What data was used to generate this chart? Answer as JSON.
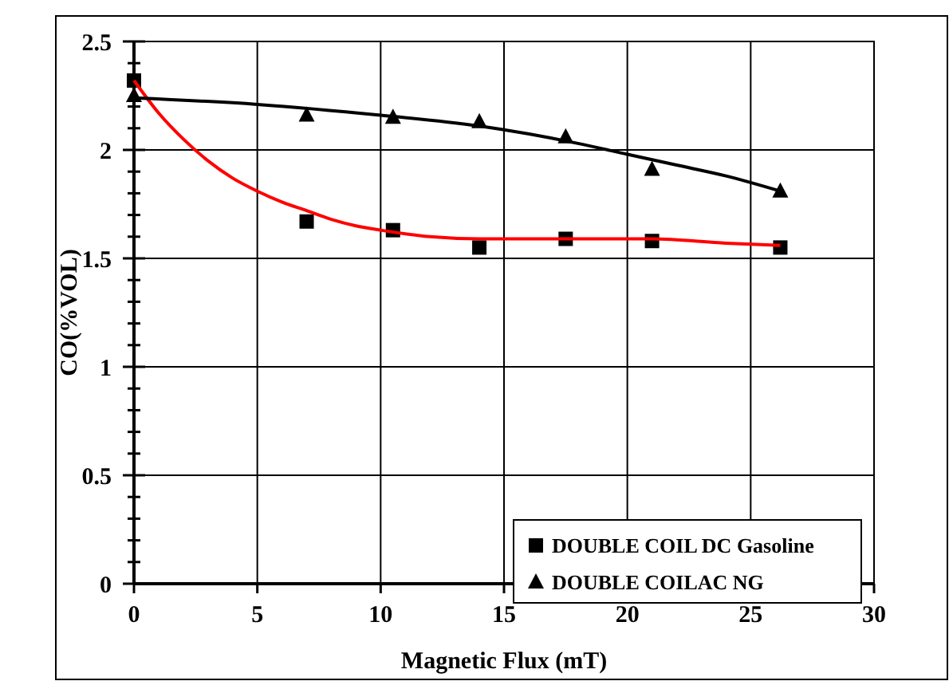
{
  "chart_data": {
    "type": "scatter",
    "xlabel": "Magnetic Flux (mT)",
    "ylabel": "CO(%VOL)",
    "xlim": [
      0,
      30
    ],
    "xticks": [
      0,
      5,
      10,
      15,
      20,
      25,
      30
    ],
    "ylim": [
      0,
      2.5
    ],
    "yticks": [
      0,
      {
        "value": 0.1,
        "label": null
      },
      {
        "value": 0.2,
        "label": null
      },
      {
        "value": 0.3,
        "label": null
      },
      {
        "value": 0.4,
        "label": null
      },
      0.5,
      {
        "value": 0.6,
        "label": null
      },
      {
        "value": 0.7,
        "label": null
      },
      {
        "value": 0.8,
        "label": null
      },
      {
        "value": 0.9,
        "label": null
      },
      1,
      {
        "value": 1.1,
        "label": null
      },
      {
        "value": 1.2,
        "label": null
      },
      {
        "value": 1.3,
        "label": null
      },
      {
        "value": 1.4,
        "label": null
      },
      1.5,
      {
        "value": 1.6,
        "label": null
      },
      {
        "value": 1.7,
        "label": null
      },
      {
        "value": 1.8,
        "label": null
      },
      {
        "value": 1.9,
        "label": null
      },
      2,
      {
        "value": 2.1,
        "label": null
      },
      {
        "value": 2.2,
        "label": null
      },
      {
        "value": 2.3,
        "label": null
      },
      {
        "value": 2.4,
        "label": null
      },
      2.5
    ],
    "grid": true,
    "legend": "bottom right",
    "series": [
      {
        "name": "DOUBLE COIL DC Gasoline",
        "color": "#000000",
        "marker": "square",
        "x": [
          0,
          7,
          10.5,
          14,
          17.5,
          21,
          26.2
        ],
        "values": [
          2.32,
          1.67,
          1.63,
          1.55,
          1.59,
          1.58,
          1.55
        ]
      },
      {
        "name": "DOUBLE COILAC NG",
        "color": "#000000",
        "marker": "triangle",
        "x": [
          0,
          7,
          10.5,
          14,
          17.5,
          21,
          26.2
        ],
        "values": [
          2.25,
          2.16,
          2.15,
          2.13,
          2.06,
          1.91,
          1.81
        ]
      },
      {
        "type": "line",
        "color": "#ff0000",
        "x": [
          0,
          1,
          2,
          3,
          4,
          5,
          6,
          7,
          8,
          9,
          10,
          12,
          14,
          17,
          21,
          24,
          26.2
        ],
        "values": [
          2.32,
          2.17,
          2.05,
          1.95,
          1.87,
          1.81,
          1.76,
          1.72,
          1.68,
          1.65,
          1.63,
          1.6,
          1.59,
          1.59,
          1.59,
          1.57,
          1.56
        ]
      },
      {
        "type": "line",
        "color": "#000000",
        "x": [
          0,
          5,
          10,
          14,
          18,
          20,
          22,
          24,
          26.2
        ],
        "values": [
          2.24,
          2.21,
          2.16,
          2.11,
          2.03,
          1.98,
          1.93,
          1.88,
          1.81
        ]
      }
    ]
  }
}
